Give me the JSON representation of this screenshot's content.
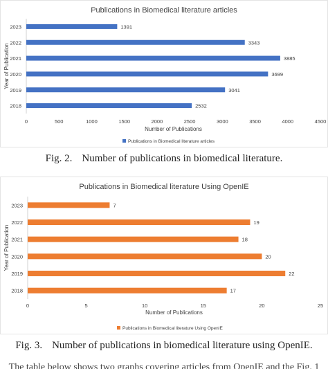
{
  "chart_data": [
    {
      "type": "bar",
      "orientation": "horizontal",
      "title": "Publications in Biomedical literature articles",
      "xlabel": "Number of Publications",
      "ylabel": "Year of Publication",
      "categories": [
        "2023",
        "2022",
        "2021",
        "2020",
        "2019",
        "2018"
      ],
      "series": [
        {
          "name": "Publications in Biomedical literature articles",
          "values": [
            1391,
            3343,
            3885,
            3699,
            3041,
            2532
          ],
          "color": "#4472c4"
        }
      ],
      "data_labels": [
        "1391",
        "3343",
        "3885",
        "3699",
        "3041",
        "2532"
      ],
      "xlim": [
        0,
        4500
      ],
      "x_ticks": [
        "0",
        "500",
        "1000",
        "1500",
        "2000",
        "2500",
        "3000",
        "3500",
        "4000",
        "4500"
      ],
      "grid": false,
      "legend_placement": "bottom"
    },
    {
      "type": "bar",
      "orientation": "horizontal",
      "title": "Publications in Biomedical literature Using OpenIE",
      "xlabel": "Number of Publications",
      "ylabel": "Year of Publication",
      "categories": [
        "2023",
        "2022",
        "2021",
        "2020",
        "2019",
        "2018"
      ],
      "series": [
        {
          "name": "Publications in Biomedical literature Using OpenIE",
          "values": [
            7,
            19,
            18,
            20,
            22,
            17
          ],
          "color": "#ed7d31"
        }
      ],
      "data_labels": [
        "7",
        "19",
        "18",
        "20",
        "22",
        "17"
      ],
      "xlim": [
        0,
        25
      ],
      "x_ticks": [
        "0",
        "5",
        "10",
        "15",
        "20",
        "25"
      ],
      "grid": false,
      "legend_placement": "bottom"
    }
  ],
  "captions": [
    {
      "label": "Fig. 2.",
      "text": "Number of publications in biomedical literature."
    },
    {
      "label": "Fig. 3.",
      "text": "Number of publications in biomedical literature using OpenIE."
    }
  ],
  "cut_off_text": "The table below shows two graphs covering articles from OpenIE and the Fig. 1"
}
